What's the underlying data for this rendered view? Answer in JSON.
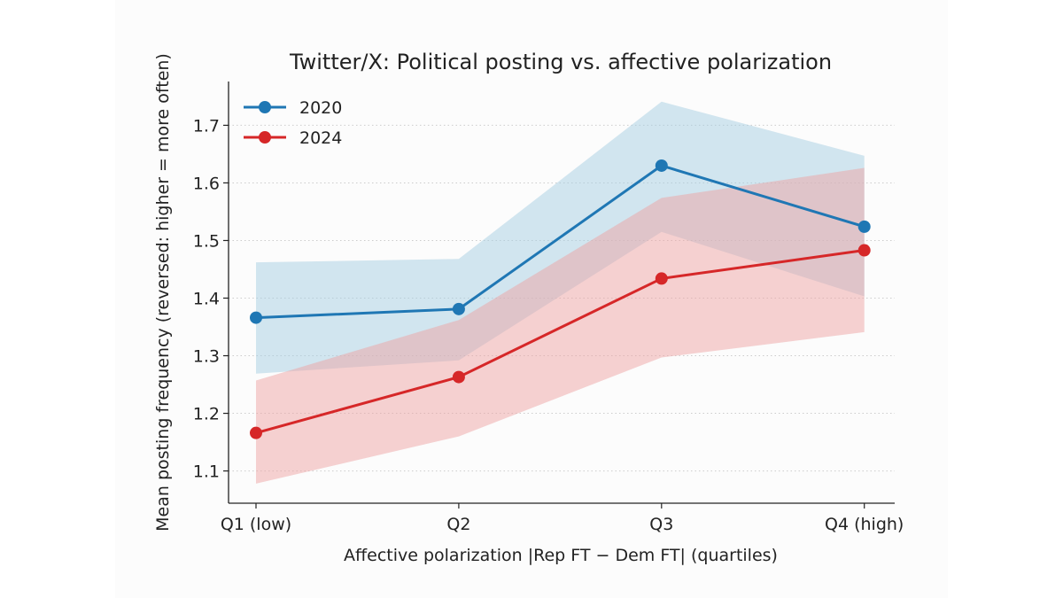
{
  "chart_data": {
    "type": "line",
    "title": "Twitter/X: Political posting vs. affective polarization",
    "xlabel": "Affective polarization |Rep FT − Dem FT| (quartiles)",
    "ylabel": "Mean posting frequency (reversed: higher = more often)",
    "categories": [
      "Q1 (low)",
      "Q2",
      "Q3",
      "Q4 (high)"
    ],
    "yticks": [
      "1.1",
      "1.2",
      "1.3",
      "1.4",
      "1.5",
      "1.6",
      "1.7"
    ],
    "ylim": [
      1.044,
      1.776
    ],
    "grid": "horizontal dotted",
    "legend_position": "top-left",
    "series": [
      {
        "name": "2020",
        "color": "#1f77b4",
        "band_color": "#a6cde2",
        "values": [
          1.366,
          1.381,
          1.63,
          1.524
        ],
        "lower": [
          1.269,
          1.292,
          1.515,
          1.403
        ],
        "upper": [
          1.462,
          1.468,
          1.741,
          1.647
        ]
      },
      {
        "name": "2024",
        "color": "#d62728",
        "band_color": "#eda3a4",
        "values": [
          1.166,
          1.263,
          1.434,
          1.483
        ],
        "lower": [
          1.078,
          1.16,
          1.297,
          1.341
        ],
        "upper": [
          1.257,
          1.362,
          1.574,
          1.626
        ]
      }
    ]
  }
}
